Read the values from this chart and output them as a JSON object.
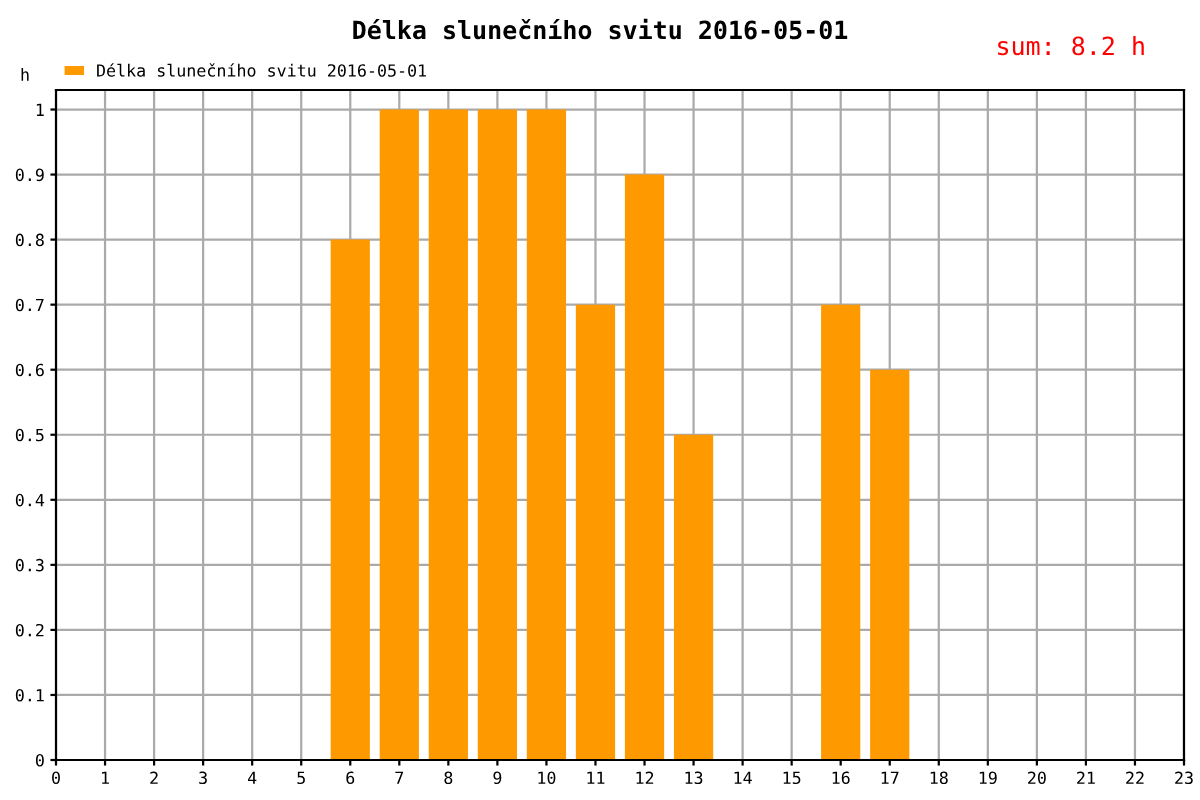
{
  "chart_data": {
    "type": "bar",
    "title": "Délka slunečního svitu 2016-05-01",
    "ylabel": "h",
    "annotations": [
      "sum: 8.2 h"
    ],
    "x": [
      6,
      7,
      8,
      9,
      10,
      11,
      12,
      13,
      16,
      17
    ],
    "series": [
      {
        "name": "Délka slunečního svitu 2016-05-01",
        "color": "#ff9900",
        "values": [
          0.8,
          1,
          1,
          1,
          1,
          0.7,
          0.9,
          0.5,
          0.7,
          0.6
        ]
      }
    ],
    "xlim": [
      0,
      23
    ],
    "xticks": [
      0,
      1,
      2,
      3,
      4,
      5,
      6,
      7,
      8,
      9,
      10,
      11,
      12,
      13,
      14,
      15,
      16,
      17,
      18,
      19,
      20,
      21,
      22,
      23
    ],
    "ylim": [
      0,
      1.03
    ],
    "yticks": [
      0,
      0.1,
      0.2,
      0.3,
      0.4,
      0.5,
      0.6,
      0.7,
      0.8,
      0.9,
      1
    ],
    "grid": true,
    "legend": "top left"
  }
}
